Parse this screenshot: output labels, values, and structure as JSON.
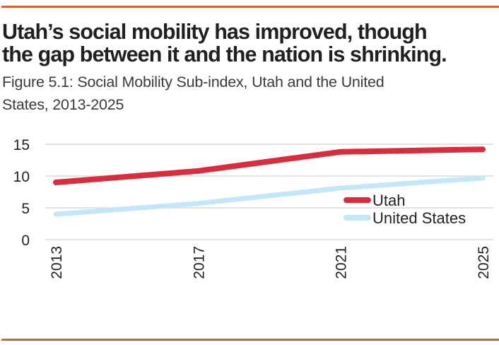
{
  "header": {
    "title_line1": "Utah’s social mobility has improved, though",
    "title_line2": "the gap between it and the nation is shrinking.",
    "subtitle_line1": "Figure 5.1: Social Mobility Sub-index, Utah and the United",
    "subtitle_line2": "States, 2013-2025"
  },
  "colors": {
    "rule": "#c8693a",
    "utah": "#d62e3e",
    "us": "#c3e6f8",
    "grid": "#d9d9d9",
    "text": "#231f20"
  },
  "chart_data": {
    "type": "line",
    "title": "Utah’s social mobility has improved, though the gap between it and the nation is shrinking.",
    "subtitle": "Figure 5.1: Social Mobility Sub-index, Utah and the United States, 2013-2025",
    "xlabel": "",
    "ylabel": "",
    "x": [
      "2013",
      "2017",
      "2021",
      "2025"
    ],
    "ylim": [
      0,
      15
    ],
    "yticks": [
      "0",
      "5",
      "10",
      "15"
    ],
    "grid": true,
    "legend": "right-center",
    "series": [
      {
        "name": "Utah",
        "color": "#d62e3e",
        "values": [
          9.0,
          10.8,
          13.8,
          14.2
        ]
      },
      {
        "name": "United States",
        "color": "#c3e6f8",
        "values": [
          4.0,
          5.7,
          8.1,
          9.7
        ]
      }
    ]
  }
}
